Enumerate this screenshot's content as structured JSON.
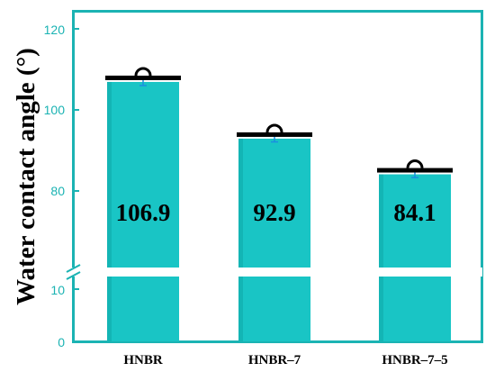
{
  "colors": {
    "bar": "#19c5c5",
    "bar_dark": "#0ea6a6",
    "axis": "#1bb3b3",
    "error": "#1b8fe0",
    "cap": "#000000",
    "text": "#000000"
  },
  "chart_data": {
    "type": "bar",
    "title": "",
    "xlabel": "",
    "ylabel": "Water contact angle (°)",
    "categories": [
      "HNBR",
      "HNBR–7",
      "HNBR–7–5"
    ],
    "values": [
      106.9,
      92.9,
      84.1
    ],
    "value_labels": [
      "106.9",
      "92.9",
      "84.1"
    ],
    "errors": [
      0.9,
      0.8,
      0.8
    ],
    "y_axis": {
      "broken": true,
      "lower_segment": [
        0,
        12
      ],
      "upper_segment": [
        60,
        125
      ],
      "ticks_lower": [
        "0",
        "10"
      ],
      "ticks_upper": [
        "80",
        "100",
        "120"
      ]
    },
    "grid": false,
    "legend": "none",
    "droplet_icon": "water-droplet-icon"
  }
}
